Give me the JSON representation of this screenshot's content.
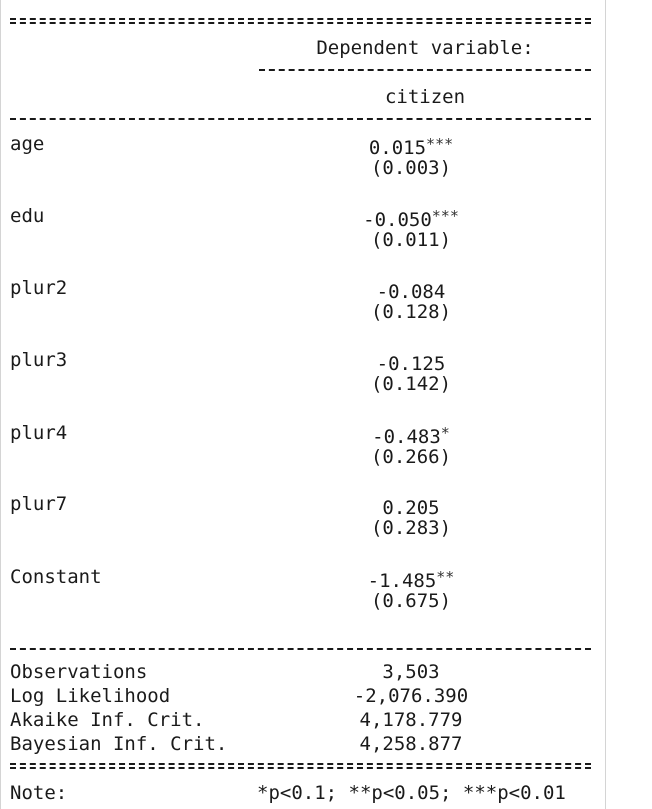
{
  "header": {
    "dependent_label": "Dependent variable:",
    "dependent_name": "citizen"
  },
  "rows": [
    {
      "name": "age",
      "coef": "0.015",
      "stars": "***",
      "se": "(0.003)"
    },
    {
      "name": "edu",
      "coef": "-0.050",
      "stars": "***",
      "se": "(0.011)"
    },
    {
      "name": "plur2",
      "coef": "-0.084",
      "stars": "",
      "se": "(0.128)"
    },
    {
      "name": "plur3",
      "coef": "-0.125",
      "stars": "",
      "se": "(0.142)"
    },
    {
      "name": "plur4",
      "coef": "-0.483",
      "stars": "*",
      "se": "(0.266)"
    },
    {
      "name": "plur7",
      "coef": "0.205",
      "stars": "",
      "se": "(0.283)"
    },
    {
      "name": "Constant",
      "coef": "-1.485",
      "stars": "**",
      "se": "(0.675)"
    }
  ],
  "stats": [
    {
      "name": "Observations",
      "value": "3,503"
    },
    {
      "name": "Log Likelihood",
      "value": "-2,076.390"
    },
    {
      "name": "Akaike Inf. Crit.",
      "value": "4,178.779"
    },
    {
      "name": "Bayesian Inf. Crit.",
      "value": "4,258.877"
    }
  ],
  "note": {
    "label": "Note:",
    "text": "*p<0.1; **p<0.05; ***p<0.01"
  }
}
